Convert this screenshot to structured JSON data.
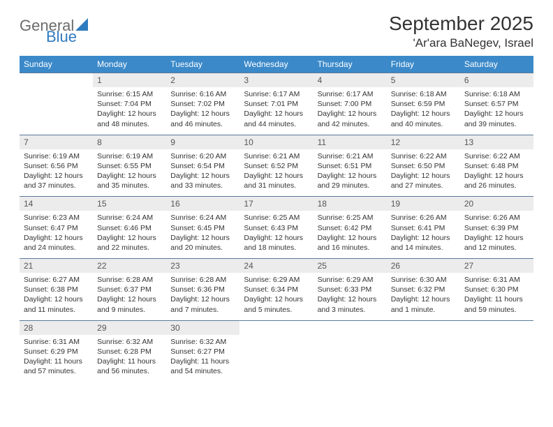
{
  "logo": {
    "general": "General",
    "blue": "Blue"
  },
  "title": "September 2025",
  "location": "'Ar'ara BaNegev, Israel",
  "colors": {
    "header_bg": "#3b89c9",
    "header_text": "#ffffff",
    "daynum_bg": "#ececec",
    "row_border": "#5a7a9a",
    "logo_gray": "#6b6b6b",
    "logo_blue": "#2f7bbf"
  },
  "weekdays": [
    "Sunday",
    "Monday",
    "Tuesday",
    "Wednesday",
    "Thursday",
    "Friday",
    "Saturday"
  ],
  "weeks": [
    {
      "nums": [
        "",
        "1",
        "2",
        "3",
        "4",
        "5",
        "6"
      ],
      "cells": [
        "",
        "Sunrise: 6:15 AM\nSunset: 7:04 PM\nDaylight: 12 hours and 48 minutes.",
        "Sunrise: 6:16 AM\nSunset: 7:02 PM\nDaylight: 12 hours and 46 minutes.",
        "Sunrise: 6:17 AM\nSunset: 7:01 PM\nDaylight: 12 hours and 44 minutes.",
        "Sunrise: 6:17 AM\nSunset: 7:00 PM\nDaylight: 12 hours and 42 minutes.",
        "Sunrise: 6:18 AM\nSunset: 6:59 PM\nDaylight: 12 hours and 40 minutes.",
        "Sunrise: 6:18 AM\nSunset: 6:57 PM\nDaylight: 12 hours and 39 minutes."
      ]
    },
    {
      "nums": [
        "7",
        "8",
        "9",
        "10",
        "11",
        "12",
        "13"
      ],
      "cells": [
        "Sunrise: 6:19 AM\nSunset: 6:56 PM\nDaylight: 12 hours and 37 minutes.",
        "Sunrise: 6:19 AM\nSunset: 6:55 PM\nDaylight: 12 hours and 35 minutes.",
        "Sunrise: 6:20 AM\nSunset: 6:54 PM\nDaylight: 12 hours and 33 minutes.",
        "Sunrise: 6:21 AM\nSunset: 6:52 PM\nDaylight: 12 hours and 31 minutes.",
        "Sunrise: 6:21 AM\nSunset: 6:51 PM\nDaylight: 12 hours and 29 minutes.",
        "Sunrise: 6:22 AM\nSunset: 6:50 PM\nDaylight: 12 hours and 27 minutes.",
        "Sunrise: 6:22 AM\nSunset: 6:48 PM\nDaylight: 12 hours and 26 minutes."
      ]
    },
    {
      "nums": [
        "14",
        "15",
        "16",
        "17",
        "18",
        "19",
        "20"
      ],
      "cells": [
        "Sunrise: 6:23 AM\nSunset: 6:47 PM\nDaylight: 12 hours and 24 minutes.",
        "Sunrise: 6:24 AM\nSunset: 6:46 PM\nDaylight: 12 hours and 22 minutes.",
        "Sunrise: 6:24 AM\nSunset: 6:45 PM\nDaylight: 12 hours and 20 minutes.",
        "Sunrise: 6:25 AM\nSunset: 6:43 PM\nDaylight: 12 hours and 18 minutes.",
        "Sunrise: 6:25 AM\nSunset: 6:42 PM\nDaylight: 12 hours and 16 minutes.",
        "Sunrise: 6:26 AM\nSunset: 6:41 PM\nDaylight: 12 hours and 14 minutes.",
        "Sunrise: 6:26 AM\nSunset: 6:39 PM\nDaylight: 12 hours and 12 minutes."
      ]
    },
    {
      "nums": [
        "21",
        "22",
        "23",
        "24",
        "25",
        "26",
        "27"
      ],
      "cells": [
        "Sunrise: 6:27 AM\nSunset: 6:38 PM\nDaylight: 12 hours and 11 minutes.",
        "Sunrise: 6:28 AM\nSunset: 6:37 PM\nDaylight: 12 hours and 9 minutes.",
        "Sunrise: 6:28 AM\nSunset: 6:36 PM\nDaylight: 12 hours and 7 minutes.",
        "Sunrise: 6:29 AM\nSunset: 6:34 PM\nDaylight: 12 hours and 5 minutes.",
        "Sunrise: 6:29 AM\nSunset: 6:33 PM\nDaylight: 12 hours and 3 minutes.",
        "Sunrise: 6:30 AM\nSunset: 6:32 PM\nDaylight: 12 hours and 1 minute.",
        "Sunrise: 6:31 AM\nSunset: 6:30 PM\nDaylight: 11 hours and 59 minutes."
      ]
    },
    {
      "nums": [
        "28",
        "29",
        "30",
        "",
        "",
        "",
        ""
      ],
      "cells": [
        "Sunrise: 6:31 AM\nSunset: 6:29 PM\nDaylight: 11 hours and 57 minutes.",
        "Sunrise: 6:32 AM\nSunset: 6:28 PM\nDaylight: 11 hours and 56 minutes.",
        "Sunrise: 6:32 AM\nSunset: 6:27 PM\nDaylight: 11 hours and 54 minutes.",
        "",
        "",
        "",
        ""
      ]
    }
  ]
}
